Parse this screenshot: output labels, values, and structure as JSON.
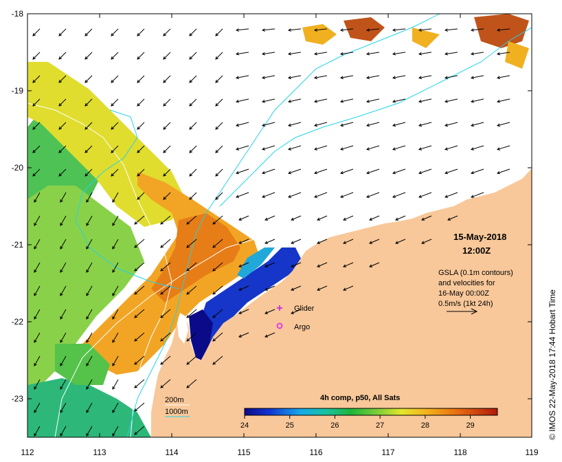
{
  "map": {
    "x_ticks": [
      "112",
      "113",
      "114",
      "115",
      "116",
      "117",
      "118",
      "119"
    ],
    "y_ticks": [
      "-18",
      "-19",
      "-20",
      "-21",
      "-22",
      "-23"
    ],
    "date_label": "15-May-2018",
    "time_label": "12:00Z",
    "gsla_lines": [
      "GSLA (0.1m contours)",
      "and velocities for",
      "16-May 00:00Z",
      "0.5m/s (1kt 24h)"
    ],
    "legend": {
      "glider_label": "Glider",
      "argo_label": "Argo",
      "contour_200": "200m",
      "contour_1000": "1000m"
    },
    "colorbar": {
      "title": "4h comp, p50, All Sats",
      "ticks": [
        "24",
        "25",
        "26",
        "27",
        "28",
        "29"
      ],
      "min": 24,
      "max": 29.6
    },
    "credit": "© IMOS 22-May-2018 17:44 Hobart Time",
    "colors": {
      "land": "#f8c89a",
      "ocean_white": "#ffffff",
      "isobath_200": "#ffffff",
      "isobath_1000": "#23d3e6",
      "glider": "#d23ad2",
      "argo": "#e03fe0"
    }
  }
}
